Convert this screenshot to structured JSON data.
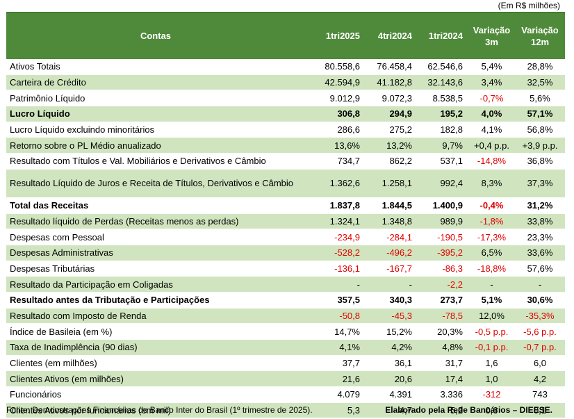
{
  "unit_note": "(Em R$ milhões)",
  "header": {
    "contas": "Contas",
    "col1": "1tri2025",
    "col2": "4tri2024",
    "col3": "1tri2024",
    "var3m_line1": "Variação",
    "var3m_line2": "3m",
    "var12m_line1": "Variação",
    "var12m_line2": "12m"
  },
  "rows": [
    {
      "label": "Ativos Totais",
      "v1": "80.558,6",
      "v2": "76.458,4",
      "v3": "62.546,6",
      "var3m": "5,4%",
      "var12m": "28,8%"
    },
    {
      "label": "Carteira de Crédito",
      "v1": "42.594,9",
      "v2": "41.182,8",
      "v3": "32.143,6",
      "var3m": "3,4%",
      "var12m": "32,5%"
    },
    {
      "label": "Patrimônio Líquido",
      "v1": "9.012,9",
      "v2": "9.072,3",
      "v3": "8.538,5",
      "var3m": "-0,7%",
      "var12m": "5,6%"
    },
    {
      "label": "Lucro Líquido",
      "v1": "306,8",
      "v2": "294,9",
      "v3": "195,2",
      "var3m": "4,0%",
      "var12m": "57,1%"
    },
    {
      "label": "Lucro Líquido excluindo minoritários",
      "v1": "286,6",
      "v2": "275,2",
      "v3": "182,8",
      "var3m": "4,1%",
      "var12m": "56,8%"
    },
    {
      "label": "Retorno sobre o PL Médio anualizado",
      "v1": "13,6%",
      "v2": "13,2%",
      "v3": "9,7%",
      "var3m": "+0,4 p.p.",
      "var12m": "+3,9 p.p."
    },
    {
      "label": "Resultado com Títulos e Val. Mobiliários e Derivativos e Câmbio",
      "v1": "734,7",
      "v2": "862,2",
      "v3": "537,1",
      "var3m": "-14,8%",
      "var12m": "36,8%"
    },
    {
      "label": "Resultado Líquido de Juros e Receita de Títulos, Derivativos e Câmbio",
      "v1": "1.362,6",
      "v2": "1.258,1",
      "v3": "992,4",
      "var3m": "8,3%",
      "var12m": "37,3%"
    },
    {
      "label": "Total das Receitas",
      "v1": "1.837,8",
      "v2": "1.844,5",
      "v3": "1.400,9",
      "var3m": "-0,4%",
      "var12m": "31,2%"
    },
    {
      "label": "Resultado líquido de Perdas (Receitas menos as perdas)",
      "v1": "1.324,1",
      "v2": "1.348,8",
      "v3": "989,9",
      "var3m": "-1,8%",
      "var12m": "33,8%"
    },
    {
      "label": "Despesas com Pessoal",
      "v1": "-234,9",
      "v2": "-284,1",
      "v3": "-190,5",
      "var3m": "-17,3%",
      "var12m": "23,3%"
    },
    {
      "label": "Despesas Administrativas",
      "v1": "-528,2",
      "v2": "-496,2",
      "v3": "-395,2",
      "var3m": "6,5%",
      "var12m": "33,6%"
    },
    {
      "label": "Despesas Tributárias",
      "v1": "-136,1",
      "v2": "-167,7",
      "v3": "-86,3",
      "var3m": "-18,8%",
      "var12m": "57,6%"
    },
    {
      "label": "Resultado da Participação em Coligadas",
      "v1": "-",
      "v2": "-",
      "v3": "-2,2",
      "var3m": "-",
      "var12m": "-"
    },
    {
      "label": "Resultado antes da Tributação e Participações",
      "v1": "357,5",
      "v2": "340,3",
      "v3": "273,7",
      "var3m": "5,1%",
      "var12m": "30,6%"
    },
    {
      "label": "Resultado com Imposto de Renda",
      "v1": "-50,8",
      "v2": "-45,3",
      "v3": "-78,5",
      "var3m": "12,0%",
      "var12m": "-35,3%"
    },
    {
      "label": "Índice de Basileia (em %)",
      "v1": "14,7%",
      "v2": "15,2%",
      "v3": "20,3%",
      "var3m": "-0,5 p.p.",
      "var12m": "-5,6 p.p."
    },
    {
      "label": "Taxa de Inadimplência (90 dias)",
      "v1": "4,1%",
      "v2": "4,2%",
      "v3": "4,8%",
      "var3m": "-0,1 p.p.",
      "var12m": "-0,7 p.p."
    },
    {
      "label": "Clientes (em milhões)",
      "v1": "37,7",
      "v2": "36,1",
      "v3": "31,7",
      "var3m": "1,6",
      "var12m": "6,0"
    },
    {
      "label": "Clientes Ativos (em milhões)",
      "v1": "21,6",
      "v2": "20,6",
      "v3": "17,4",
      "var3m": "1,0",
      "var12m": "4,2"
    },
    {
      "label": "Funcionários",
      "v1": "4.079",
      "v2": "4.391",
      "v3": "3.336",
      "var3m": "-312",
      "var12m": "743"
    },
    {
      "label": "Clientes Ativos por funcionários (em mil)",
      "v1": "5,3",
      "v2": "4,7",
      "v3": "5,2",
      "var3m": "0,6",
      "var12m": "0,1"
    }
  ],
  "footer": {
    "source": "Fonte: Demonstrações Financeiras do Banco Inter do Brasil (1º trimestre de 2025).",
    "credit": "Elaborado pela Rede Bancários – DIEESE."
  },
  "colors": {
    "header_bg": "#4e8a3a",
    "row_alt_bg": "#d0e5bf",
    "negative_text": "#e00000"
  }
}
